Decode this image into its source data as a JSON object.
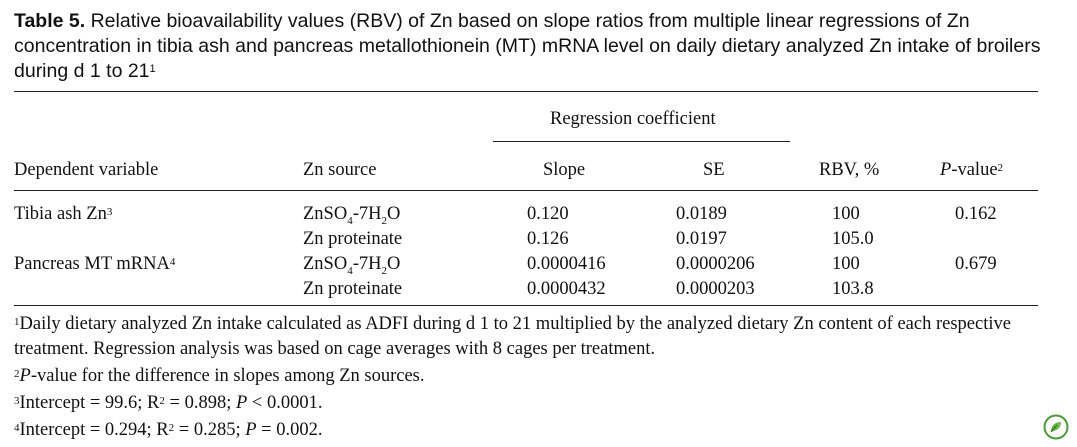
{
  "caption": {
    "label": "Table 5.",
    "text": " Relative bioavailability values (RBV) of Zn based on slope ratios from multiple linear regressions of Zn concentration in tibia ash and pancreas metallothionein (MT) mRNA level on daily dietary analyzed Zn intake of broilers during d 1 to 21",
    "note_ref": "1"
  },
  "header": {
    "group": "Regression coefficient",
    "dependent": "Dependent variable",
    "source": "Zn source",
    "slope": "Slope",
    "se": "SE",
    "rbv": "RBV, %",
    "pvalue_p": "P",
    "pvalue_rest": "-value",
    "pvalue_ref": "2"
  },
  "rows": [
    {
      "dependent": "Tibia ash Zn",
      "dep_ref": "3",
      "source_main": "ZnSO",
      "source_sub1": "4",
      "source_mid": "-7H",
      "source_sub2": "2",
      "source_end": "O",
      "slope": "0.120",
      "se": "0.0189",
      "rbv": "100",
      "p": "0.162"
    },
    {
      "dependent": "",
      "source": "Zn proteinate",
      "slope": "0.126",
      "se": "0.0197",
      "rbv": "105.0",
      "p": ""
    },
    {
      "dependent": "Pancreas MT mRNA",
      "dep_ref": "4",
      "source_main": "ZnSO",
      "source_sub1": "4",
      "source_mid": "-7H",
      "source_sub2": "2",
      "source_end": "O",
      "slope": "0.0000416",
      "se": "0.0000206",
      "rbv": "100",
      "p": "0.679"
    },
    {
      "dependent": "",
      "source": "Zn proteinate",
      "slope": "0.0000432",
      "se": "0.0000203",
      "rbv": "103.8",
      "p": ""
    }
  ],
  "footnotes": {
    "f1_ref": "1",
    "f1_text": "Daily dietary analyzed Zn intake calculated as ADFI during d 1 to 21 multiplied by the analyzed dietary Zn content of each respective treatment. Regression analysis was based on cage averages with 8 cages per treatment.",
    "f2_ref": "2",
    "f2_p": "P",
    "f2_text": "-value for the difference in slopes among Zn sources.",
    "f3_ref": "3",
    "f3_a": "Intercept = 99.6; R",
    "f3_sq": "2",
    "f3_b": " = 0.898; ",
    "f3_p": "P",
    "f3_c": " < 0.0001.",
    "f4_ref": "4",
    "f4_a": "Intercept = 0.294; R",
    "f4_sq": "2",
    "f4_b": " = 0.285; ",
    "f4_p": "P",
    "f4_c": " = 0.002."
  },
  "logo_icon": "leaf-badge-icon",
  "accent_color": "#4a9a3a"
}
